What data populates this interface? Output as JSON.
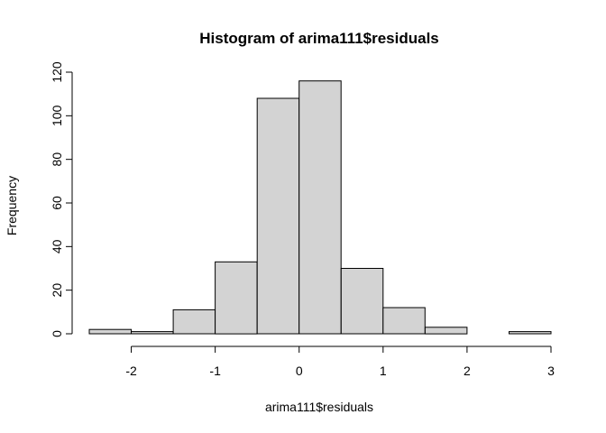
{
  "chart_data": {
    "type": "bar",
    "title": "Histogram of arima111$residuals",
    "xlabel": "arima111$residuals",
    "ylabel": "Frequency",
    "bin_edges": [
      -2.5,
      -2.0,
      -1.5,
      -1.0,
      -0.5,
      0.0,
      0.5,
      1.0,
      1.5,
      2.0,
      2.5,
      3.0
    ],
    "values": [
      2,
      1,
      11,
      33,
      108,
      116,
      30,
      12,
      3,
      0,
      1
    ],
    "xlim": [
      -2.5,
      3.0
    ],
    "ylim": [
      0,
      120
    ],
    "x_ticks": [
      "-2",
      "-1",
      "0",
      "1",
      "2",
      "3"
    ],
    "y_ticks": [
      "0",
      "20",
      "40",
      "60",
      "80",
      "100",
      "120"
    ],
    "bar_color": "#d3d3d3",
    "edge_color": "#000000",
    "grid": false
  }
}
